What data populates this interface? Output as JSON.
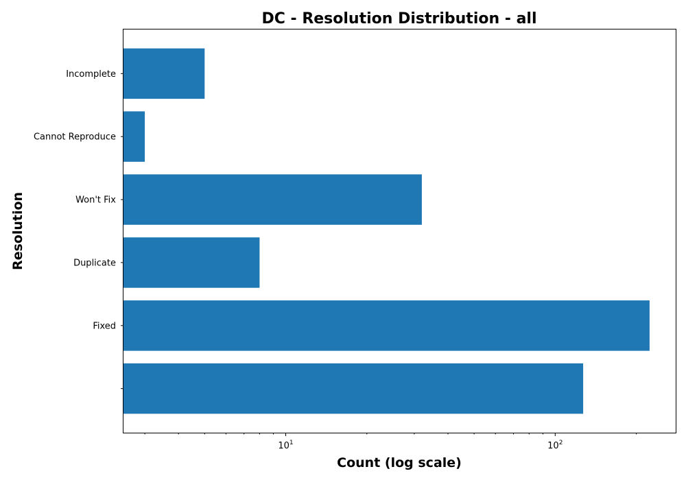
{
  "chart_data": {
    "type": "bar",
    "orientation": "horizontal",
    "title": "DC - Resolution Distribution - all",
    "xlabel": "Count (log scale)",
    "ylabel": "Resolution",
    "x_scale": "log",
    "xlim": [
      2.5,
      280
    ],
    "x_major_ticks": [
      {
        "value": 10,
        "label_base": "10",
        "label_exp": "1"
      },
      {
        "value": 100,
        "label_base": "10",
        "label_exp": "2"
      }
    ],
    "categories": [
      "",
      "Fixed",
      "Duplicate",
      "Won't Fix",
      "Cannot Reproduce",
      "Incomplete"
    ],
    "values": [
      127,
      224,
      8,
      32,
      3,
      5
    ],
    "color": "#1f77b4",
    "grid": false
  }
}
